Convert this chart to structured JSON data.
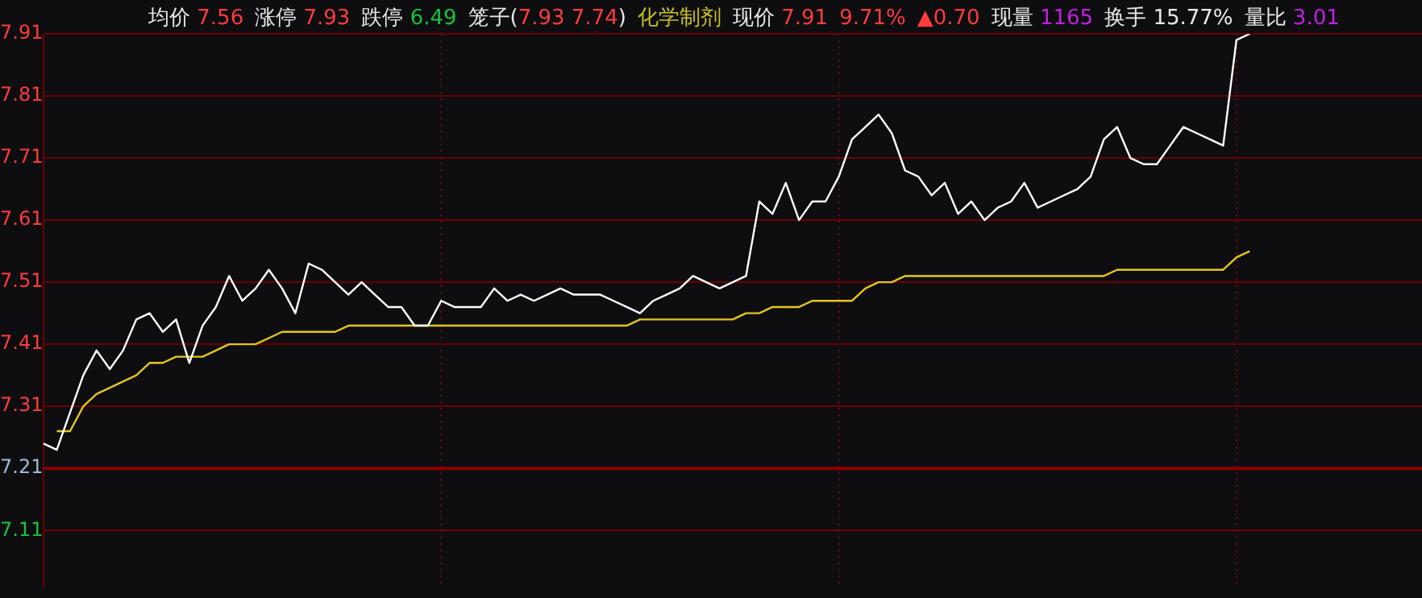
{
  "chart_data": {
    "type": "line",
    "annotations": [
      "均价 7.56",
      "涨停 7.93",
      "跌停 6.49",
      "笼子(7.93 7.74)",
      "化学制剂",
      "现价 7.91",
      "9.71%",
      "▲0.70",
      "现量 1165",
      "换手 15.77%",
      "量比 3.01"
    ],
    "categories": [
      null,
      null,
      null,
      null,
      null,
      null,
      null,
      null,
      null,
      null,
      null,
      null,
      null,
      null,
      null,
      null,
      null,
      null,
      null,
      null,
      null,
      null,
      null,
      null,
      null,
      null,
      null,
      null,
      null,
      null,
      null,
      null,
      null,
      null,
      null,
      null,
      null,
      null,
      null,
      null,
      null,
      null,
      null,
      null,
      null,
      null,
      null,
      null,
      null,
      null,
      null,
      null,
      null,
      null,
      null,
      null,
      null,
      null,
      null,
      null,
      null,
      null,
      null,
      null,
      null,
      null,
      null,
      null,
      null,
      null,
      null,
      null,
      null,
      null,
      null,
      null,
      null,
      null,
      null,
      null,
      null,
      null,
      null,
      null,
      null,
      null,
      null,
      null,
      null,
      null,
      null,
      null,
      null,
      null,
      null,
      null,
      null,
      null,
      null,
      null,
      null,
      null,
      null,
      null,
      null
    ],
    "series": [
      {
        "color": "#ffffff",
        "values": [
          7.25,
          7.24,
          7.3,
          7.36,
          7.4,
          7.37,
          7.4,
          7.45,
          7.46,
          7.43,
          7.45,
          7.38,
          7.44,
          7.47,
          7.52,
          7.48,
          7.5,
          7.53,
          7.5,
          7.46,
          7.54,
          7.53,
          7.51,
          7.49,
          7.51,
          7.49,
          7.47,
          7.47,
          7.44,
          7.44,
          7.48,
          7.47,
          7.47,
          7.47,
          7.5,
          7.48,
          7.49,
          7.48,
          7.49,
          7.5,
          7.49,
          7.49,
          7.49,
          7.48,
          7.47,
          7.46,
          7.48,
          7.49,
          7.5,
          7.52,
          7.51,
          7.5,
          7.51,
          7.52,
          7.64,
          7.62,
          7.67,
          7.61,
          7.64,
          7.64,
          7.68,
          7.74,
          7.76,
          7.78,
          7.75,
          7.69,
          7.68,
          7.65,
          7.67,
          7.62,
          7.64,
          7.61,
          7.63,
          7.64,
          7.67,
          7.63,
          7.64,
          7.65,
          7.66,
          7.68,
          7.74,
          7.76,
          7.71,
          7.7,
          7.7,
          7.73,
          7.76,
          7.75,
          7.74,
          7.73,
          7.9,
          7.91,
          null,
          null,
          null,
          null,
          null,
          null,
          null,
          null,
          null,
          null,
          null,
          null,
          null
        ]
      },
      {
        "color": "#e6c619",
        "values": [
          null,
          7.27,
          7.27,
          7.31,
          7.33,
          7.34,
          7.35,
          7.36,
          7.38,
          7.38,
          7.39,
          7.39,
          7.39,
          7.4,
          7.41,
          7.41,
          7.41,
          7.42,
          7.43,
          7.43,
          7.43,
          7.43,
          7.43,
          7.44,
          7.44,
          7.44,
          7.44,
          7.44,
          7.44,
          7.44,
          7.44,
          7.44,
          7.44,
          7.44,
          7.44,
          7.44,
          7.44,
          7.44,
          7.44,
          7.44,
          7.44,
          7.44,
          7.44,
          7.44,
          7.44,
          7.45,
          7.45,
          7.45,
          7.45,
          7.45,
          7.45,
          7.45,
          7.45,
          7.46,
          7.46,
          7.47,
          7.47,
          7.47,
          7.48,
          7.48,
          7.48,
          7.48,
          7.5,
          7.51,
          7.51,
          7.52,
          7.52,
          7.52,
          7.52,
          7.52,
          7.52,
          7.52,
          7.52,
          7.52,
          7.52,
          7.52,
          7.52,
          7.52,
          7.52,
          7.52,
          7.52,
          7.53,
          7.53,
          7.53,
          7.53,
          7.53,
          7.53,
          7.53,
          7.53,
          7.53,
          7.55,
          7.56,
          null,
          null,
          null,
          null,
          null,
          null,
          null,
          null,
          null,
          null,
          null,
          null,
          null
        ]
      }
    ],
    "ylim": [
      7.02,
      7.91
    ],
    "yticks": [
      7.11,
      7.21,
      7.31,
      7.41,
      7.51,
      7.61,
      7.71,
      7.81,
      7.91
    ],
    "ref_lines": [
      {
        "axis": "y",
        "value": 7.21,
        "label": null,
        "color": "#8b0000"
      }
    ],
    "grid": true,
    "tick_labels": "y",
    "legend": false,
    "marker": "none",
    "line_style": "solid"
  }
}
